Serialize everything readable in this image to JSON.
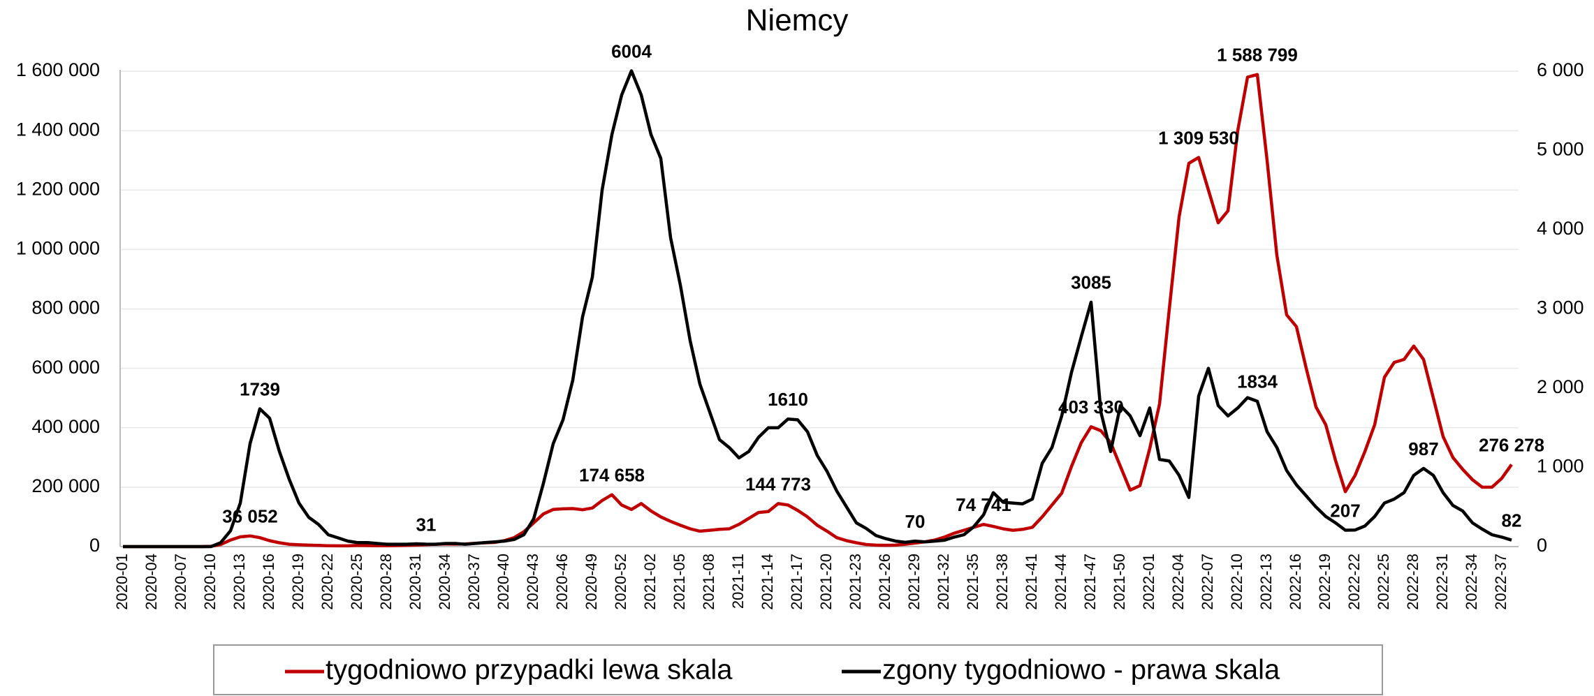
{
  "chart_data": {
    "type": "line",
    "title": "Niemcy",
    "categories": [
      "2020-01",
      null,
      null,
      "2020-04",
      null,
      null,
      "2020-07",
      null,
      null,
      "2020-10",
      null,
      null,
      "2020-13",
      null,
      null,
      "2020-16",
      null,
      null,
      "2020-19",
      null,
      null,
      "2020-22",
      null,
      null,
      "2020-25",
      null,
      null,
      "2020-28",
      null,
      null,
      "2020-31",
      null,
      null,
      "2020-34",
      null,
      null,
      "2020-37",
      null,
      null,
      "2020-40",
      null,
      null,
      "2020-43",
      null,
      null,
      "2020-46",
      null,
      null,
      "2020-49",
      null,
      null,
      "2020-52",
      null,
      null,
      "2021-02",
      null,
      null,
      "2021-05",
      null,
      null,
      "2021-08",
      null,
      null,
      "2021-11",
      null,
      null,
      "2021-14",
      null,
      null,
      "2021-17",
      null,
      null,
      "2021-20",
      null,
      null,
      "2021-23",
      null,
      null,
      "2021-26",
      null,
      null,
      "2021-29",
      null,
      null,
      "2021-32",
      null,
      null,
      "2021-35",
      null,
      null,
      "2021-38",
      null,
      null,
      "2021-41",
      null,
      null,
      "2021-44",
      null,
      null,
      "2021-47",
      null,
      null,
      "2021-50",
      null,
      null,
      "2022-01",
      null,
      null,
      "2022-04",
      null,
      null,
      "2022-07",
      null,
      null,
      "2022-10",
      null,
      null,
      "2022-13",
      null,
      null,
      "2022-16",
      null,
      null,
      "2022-19",
      null,
      null,
      "2022-22",
      null,
      null,
      "2022-25",
      null,
      null,
      "2022-28",
      null,
      null,
      "2022-31",
      null,
      null,
      "2022-34",
      null,
      null,
      "2022-37",
      null
    ],
    "series": [
      {
        "name": "tygodniowo przypadki lewa skala",
        "color": "#c00000",
        "axis": "y",
        "values": [
          0,
          0,
          0,
          0,
          0,
          0,
          0,
          0,
          0,
          1000,
          7000,
          22000,
          33000,
          36052,
          30000,
          20000,
          13000,
          8000,
          6000,
          5000,
          4000,
          3000,
          2500,
          2500,
          4000,
          3500,
          2800,
          2800,
          3500,
          4500,
          5500,
          6500,
          8000,
          9000,
          8500,
          9000,
          11000,
          13000,
          14000,
          20000,
          30000,
          50000,
          80000,
          110000,
          125000,
          127000,
          128000,
          124000,
          130000,
          155000,
          174658,
          140000,
          125000,
          145000,
          120000,
          100000,
          85000,
          72000,
          60000,
          52000,
          55000,
          58000,
          60000,
          75000,
          95000,
          115000,
          118000,
          144773,
          140000,
          122000,
          100000,
          72000,
          52000,
          30000,
          20000,
          13000,
          7000,
          5000,
          4500,
          5000,
          8000,
          12000,
          16000,
          22000,
          32000,
          45000,
          55000,
          65000,
          74741,
          68000,
          60000,
          55000,
          58000,
          65000,
          100000,
          140000,
          180000,
          270000,
          350000,
          403330,
          390000,
          350000,
          270000,
          190000,
          205000,
          330000,
          480000,
          800000,
          1110000,
          1290000,
          1309530,
          1200000,
          1090000,
          1130000,
          1400000,
          1580000,
          1588799,
          1300000,
          980000,
          780000,
          740000,
          600000,
          470000,
          410000,
          290000,
          185000,
          240000,
          320000,
          410000,
          570000,
          620000,
          630000,
          675000,
          630000,
          500000,
          370000,
          300000,
          260000,
          225000,
          200000,
          200000,
          230000,
          276278
        ],
        "value_labels": [
          null,
          null,
          null,
          null,
          null,
          null,
          null,
          null,
          null,
          null,
          null,
          null,
          null,
          "36 052",
          null,
          null,
          null,
          null,
          null,
          null,
          null,
          null,
          null,
          null,
          null,
          null,
          null,
          null,
          null,
          null,
          null,
          null,
          null,
          null,
          null,
          null,
          null,
          null,
          null,
          null,
          null,
          null,
          null,
          null,
          null,
          null,
          null,
          null,
          null,
          null,
          "174 658",
          null,
          null,
          null,
          null,
          null,
          null,
          null,
          null,
          null,
          null,
          null,
          null,
          null,
          null,
          null,
          null,
          "144 773",
          null,
          null,
          null,
          null,
          null,
          null,
          null,
          null,
          null,
          null,
          null,
          null,
          null,
          null,
          null,
          null,
          null,
          null,
          null,
          null,
          "74 741",
          null,
          null,
          null,
          null,
          null,
          null,
          null,
          null,
          null,
          null,
          "403 330",
          null,
          null,
          null,
          null,
          null,
          null,
          null,
          null,
          null,
          null,
          "1 309 530",
          null,
          null,
          null,
          null,
          null,
          "1 588 799",
          null,
          null,
          null,
          null,
          null,
          null,
          null,
          null,
          null,
          null,
          null,
          null,
          null,
          null,
          null,
          null,
          null,
          null,
          null,
          null,
          null,
          null,
          null,
          null,
          null,
          "276 278"
        ]
      },
      {
        "name": "zgony tygodniowo - prawa skala",
        "color": "#000000",
        "axis": "y2",
        "values": [
          0,
          0,
          0,
          0,
          0,
          0,
          0,
          0,
          0,
          0,
          50,
          200,
          550,
          1300,
          1739,
          1620,
          1200,
          850,
          550,
          370,
          280,
          150,
          110,
          70,
          50,
          50,
          40,
          30,
          30,
          30,
          35,
          31,
          30,
          40,
          40,
          30,
          40,
          50,
          60,
          70,
          90,
          150,
          350,
          800,
          1300,
          1600,
          2100,
          2900,
          3400,
          4500,
          5200,
          5700,
          6004,
          5700,
          5200,
          4900,
          3900,
          3300,
          2600,
          2050,
          1700,
          1350,
          1250,
          1120,
          1200,
          1380,
          1500,
          1500,
          1610,
          1600,
          1450,
          1150,
          950,
          700,
          500,
          300,
          230,
          140,
          100,
          70,
          55,
          70,
          60,
          70,
          80,
          120,
          150,
          250,
          400,
          680,
          560,
          550,
          540,
          600,
          1050,
          1250,
          1650,
          2200,
          2650,
          3085,
          1700,
          1200,
          1780,
          1650,
          1400,
          1750,
          1100,
          1080,
          900,
          620,
          1900,
          2250,
          1780,
          1650,
          1750,
          1880,
          1834,
          1450,
          1250,
          960,
          780,
          640,
          500,
          380,
          300,
          207,
          210,
          260,
          380,
          550,
          600,
          680,
          900,
          987,
          900,
          680,
          520,
          450,
          300,
          220,
          150,
          120,
          82
        ],
        "value_labels": [
          null,
          null,
          null,
          null,
          null,
          null,
          null,
          null,
          null,
          null,
          null,
          null,
          null,
          null,
          "1739",
          null,
          null,
          null,
          null,
          null,
          null,
          null,
          null,
          null,
          null,
          null,
          null,
          null,
          null,
          null,
          null,
          "31",
          null,
          null,
          null,
          null,
          null,
          null,
          null,
          null,
          null,
          null,
          null,
          null,
          null,
          null,
          null,
          null,
          null,
          null,
          null,
          null,
          "6004",
          null,
          null,
          null,
          null,
          null,
          null,
          null,
          null,
          null,
          null,
          null,
          null,
          null,
          null,
          null,
          "1610",
          null,
          null,
          null,
          null,
          null,
          null,
          null,
          null,
          null,
          null,
          null,
          null,
          "70",
          null,
          null,
          null,
          null,
          null,
          null,
          null,
          null,
          null,
          null,
          null,
          null,
          null,
          null,
          null,
          null,
          null,
          "3085",
          null,
          null,
          null,
          null,
          null,
          null,
          null,
          null,
          null,
          null,
          null,
          null,
          null,
          null,
          null,
          null,
          "1834",
          null,
          null,
          null,
          null,
          null,
          null,
          null,
          null,
          "207",
          null,
          null,
          null,
          null,
          null,
          null,
          null,
          "987",
          null,
          null,
          null,
          null,
          null,
          null,
          null,
          null,
          "82"
        ]
      }
    ],
    "ylim": [
      0,
      1600000
    ],
    "yticks": [
      0,
      {
        "value": 200000,
        "label": "200 000"
      },
      {
        "value": 400000,
        "label": "400 000"
      },
      {
        "value": 600000,
        "label": "600 000"
      },
      {
        "value": 800000,
        "label": "800 000"
      },
      {
        "value": 1000000,
        "label": "1 000 000"
      },
      {
        "value": 1200000,
        "label": "1 200 000"
      },
      {
        "value": 1400000,
        "label": "1 400 000"
      },
      {
        "value": 1600000,
        "label": "1 600 000"
      }
    ],
    "y2lim": [
      0,
      6000
    ],
    "y2ticks": [
      0,
      {
        "value": 1000,
        "label": "1 000"
      },
      {
        "value": 2000,
        "label": "2 000"
      },
      {
        "value": 3000,
        "label": "3 000"
      },
      {
        "value": 4000,
        "label": "4 000"
      },
      {
        "value": 5000,
        "label": "5 000"
      },
      {
        "value": 6000,
        "label": "6 000"
      }
    ],
    "grid": true,
    "legend": "bottom"
  }
}
